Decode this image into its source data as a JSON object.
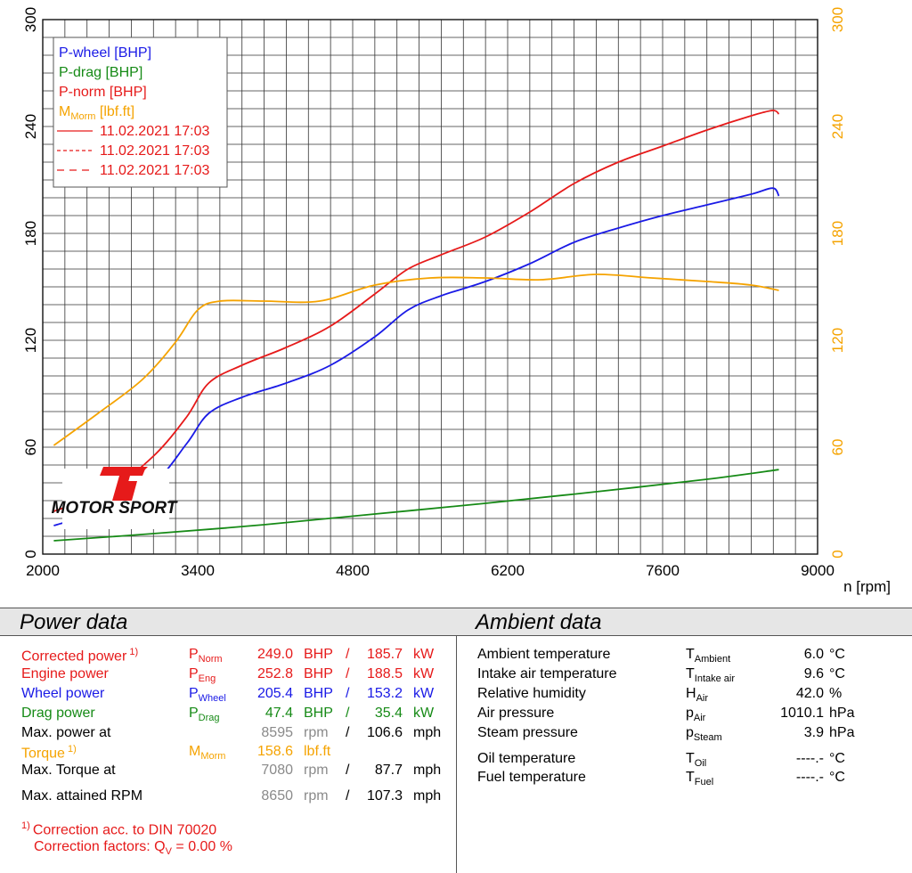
{
  "chart_data": {
    "type": "line",
    "xlabel": "n [rpm]",
    "x_ticks": [
      2000,
      3400,
      4800,
      6200,
      7600,
      9000
    ],
    "xlim": [
      2000,
      9000
    ],
    "ylim_left": [
      0,
      300
    ],
    "ylim_right": [
      0,
      300
    ],
    "y_ticks_left": [
      0,
      60,
      120,
      180,
      240,
      300
    ],
    "y_ticks_right": [
      0,
      60,
      120,
      180,
      240,
      300
    ],
    "grid": true,
    "legend": {
      "placement": "top-left",
      "items": [
        {
          "label": "P-wheel [BHP]",
          "color": "#1a1ae6"
        },
        {
          "label": "P-drag [BHP]",
          "color": "#168a16"
        },
        {
          "label": "P-norm [BHP]",
          "color": "#e61a1a"
        },
        {
          "label": "M",
          "sub": "Morm",
          "label_after": " [lbf.ft]",
          "color": "#f5a300"
        },
        {
          "label": "11.02.2021 17:03",
          "style": "solid",
          "color": "#e61a1a"
        },
        {
          "label": "11.02.2021 17:03",
          "style": "dashed",
          "color": "#e61a1a"
        },
        {
          "label": "11.02.2021 17:03",
          "style": "longdash",
          "color": "#e61a1a"
        }
      ]
    },
    "series": [
      {
        "name": "P-wheel [BHP]",
        "axis": "left",
        "color": "#1a1ae6",
        "x": [
          2100,
          2500,
          3000,
          3300,
          3500,
          3800,
          4200,
          4600,
          5000,
          5300,
          5600,
          6000,
          6400,
          6800,
          7200,
          7600,
          8000,
          8400,
          8595,
          8650
        ],
        "y": [
          16,
          24,
          40,
          62,
          79,
          88,
          96,
          106,
          122,
          137,
          145,
          153,
          163,
          175,
          183,
          190,
          196,
          202,
          205.4,
          201
        ]
      },
      {
        "name": "P-drag [BHP]",
        "axis": "left",
        "color": "#168a16",
        "x": [
          2100,
          3000,
          4000,
          5000,
          6000,
          7000,
          8000,
          8650
        ],
        "y": [
          7.5,
          11.5,
          16.5,
          22.5,
          28.5,
          35,
          42,
          47.4
        ]
      },
      {
        "name": "P-norm [BHP]",
        "axis": "left",
        "color": "#e61a1a",
        "x": [
          2100,
          2600,
          3000,
          3300,
          3500,
          3800,
          4200,
          4600,
          5000,
          5300,
          5600,
          6000,
          6400,
          6800,
          7200,
          7600,
          8000,
          8400,
          8595,
          8650
        ],
        "y": [
          24,
          36,
          55,
          77,
          96,
          106,
          116,
          128,
          146,
          160,
          168,
          178,
          192,
          208,
          220,
          229,
          238,
          246,
          249,
          247
        ]
      },
      {
        "name": "M Morm [lbf.ft]",
        "axis": "right",
        "color": "#f5a300",
        "x": [
          2100,
          2500,
          2900,
          3200,
          3400,
          3600,
          4000,
          4500,
          5000,
          5500,
          6000,
          6500,
          7000,
          7500,
          8000,
          8400,
          8650
        ],
        "y": [
          61,
          79,
          98,
          119,
          137,
          142,
          142,
          142,
          151,
          155,
          155,
          154,
          157,
          155,
          153,
          151,
          148
        ]
      }
    ]
  },
  "logo": {
    "text_top": "Ti",
    "text_bottom": "MOTOR SPORT"
  },
  "power": {
    "title": "Power data",
    "rows": [
      {
        "label": "Corrected power",
        "note": "1)",
        "sym": "P",
        "sub": "Norm",
        "v1": "249.0",
        "u1": "BHP",
        "sep": "/",
        "v2": "185.7",
        "u2": "kW",
        "color": "#e61a1a"
      },
      {
        "label": "Engine power",
        "sym": "P",
        "sub": "Eng",
        "v1": "252.8",
        "u1": "BHP",
        "sep": "/",
        "v2": "188.5",
        "u2": "kW",
        "color": "#e61a1a"
      },
      {
        "label": "Wheel power",
        "sym": "P",
        "sub": "Wheel",
        "v1": "205.4",
        "u1": "BHP",
        "sep": "/",
        "v2": "153.2",
        "u2": "kW",
        "color": "#1a1ae6"
      },
      {
        "label": "Drag power",
        "sym": "P",
        "sub": "Drag",
        "v1": "47.4",
        "u1": "BHP",
        "sep": "/",
        "v2": "35.4",
        "u2": "kW",
        "color": "#168a16"
      },
      {
        "label": "Max. power at",
        "v1": "8595",
        "u1": "rpm",
        "sep": "/",
        "v2": "106.6",
        "u2": "mph",
        "color": "#000"
      },
      {
        "label": "Torque",
        "note": "1)",
        "sym": "M",
        "sub": "Morm",
        "v1": "158.6",
        "u1": "lbf.ft",
        "color": "#f5a300"
      },
      {
        "label": "Max. Torque at",
        "v1": "7080",
        "u1": "rpm",
        "sep": "/",
        "v2": "87.7",
        "u2": "mph",
        "color": "#000"
      },
      {
        "label": "Max. attained RPM",
        "v1": "8650",
        "u1": "rpm",
        "sep": "/",
        "v2": "107.3",
        "u2": "mph",
        "color": "#000"
      }
    ],
    "footnote_mark": "1)",
    "footnote": "Correction acc. to DIN 70020",
    "factors_label": "Correction factors: Q",
    "factors_sub": "V",
    "factors_value": " =   0.00 %"
  },
  "ambient": {
    "title": "Ambient data",
    "rows": [
      {
        "label": "Ambient temperature",
        "sym": "T",
        "sub": "Ambient",
        "value": "6.0",
        "unit": "°C"
      },
      {
        "label": "Intake air temperature",
        "sym": "T",
        "sub": "Intake air",
        "value": "9.6",
        "unit": "°C"
      },
      {
        "label": "Relative humidity",
        "sym": "H",
        "sub": "Air",
        "value": "42.0",
        "unit": "%"
      },
      {
        "label": "Air pressure",
        "sym": "p",
        "sub": "Air",
        "value": "1010.1",
        "unit": "hPa"
      },
      {
        "label": "Steam pressure",
        "sym": "p",
        "sub": "Steam",
        "value": "3.9",
        "unit": "hPa"
      },
      {
        "label": "Oil temperature",
        "sym": "T",
        "sub": "Oil",
        "value": "----.-",
        "unit": "°C"
      },
      {
        "label": "Fuel temperature",
        "sym": "T",
        "sub": "Fuel",
        "value": "----.-",
        "unit": "°C"
      }
    ]
  }
}
